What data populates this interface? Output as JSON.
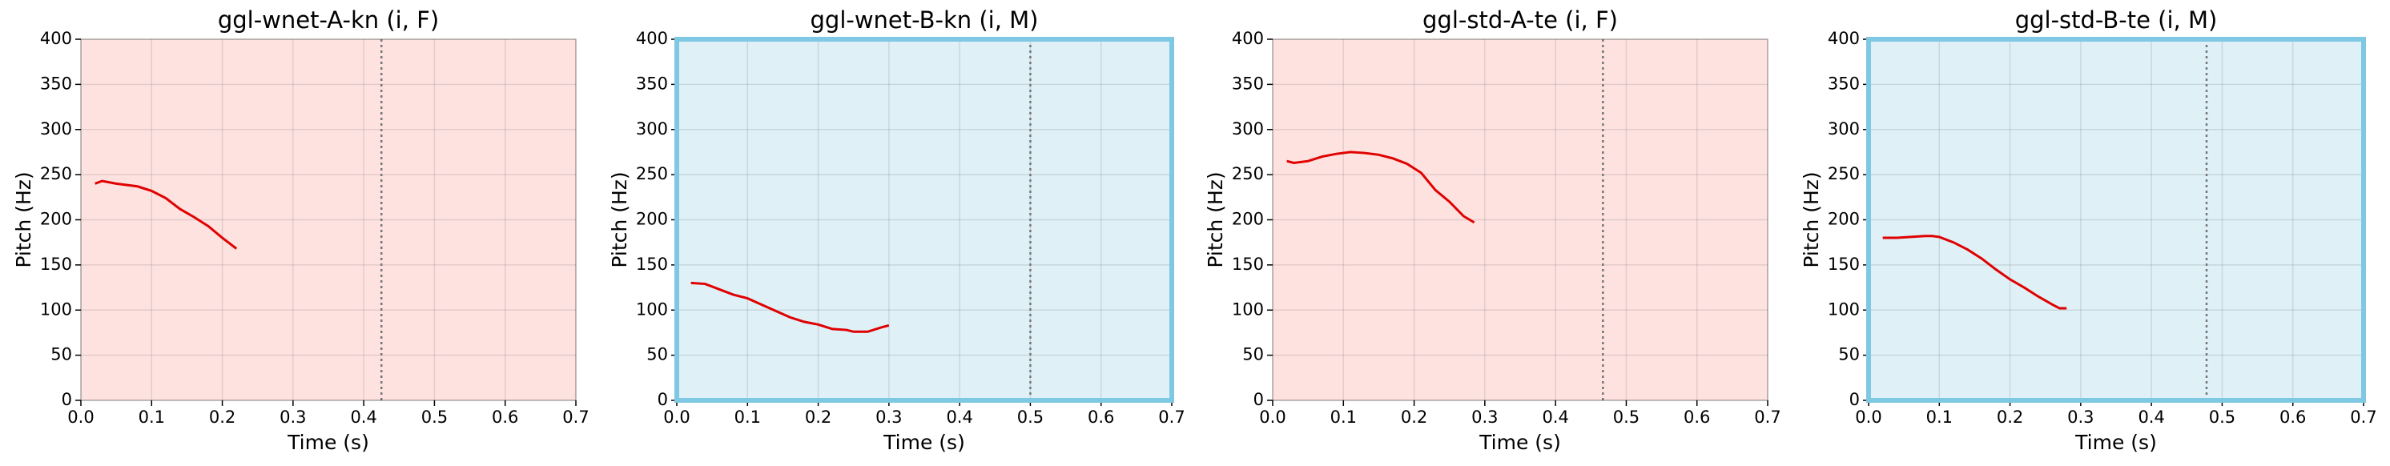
{
  "chart_data": [
    {
      "type": "line",
      "title": "ggl-wnet-A-kn (i, F)",
      "x_label": "Time (s)",
      "y_label": "Pitch (Hz)",
      "x": [
        0.02,
        0.03,
        0.05,
        0.08,
        0.1,
        0.12,
        0.14,
        0.16,
        0.18,
        0.2,
        0.22
      ],
      "values": [
        240,
        243,
        240,
        237,
        232,
        224,
        212,
        203,
        193,
        180,
        168
      ],
      "color": "#e00000",
      "vline": 0.425,
      "background": "#fde2e0",
      "xlim": [
        0,
        0.7
      ],
      "xticks": [
        {
          "value": 0,
          "label": "0.0"
        },
        0.1,
        0.2,
        0.3,
        0.4,
        0.5,
        0.6,
        0.7
      ],
      "ylim": [
        0,
        400
      ],
      "yticks": [
        0,
        50,
        100,
        150,
        200,
        250,
        300,
        350,
        400
      ],
      "grid": true
    },
    {
      "type": "line",
      "title": "ggl-wnet-B-kn (i, M)",
      "x_label": "Time (s)",
      "y_label": "Pitch (Hz)",
      "x": [
        0.02,
        0.04,
        0.06,
        0.08,
        0.1,
        0.12,
        0.14,
        0.16,
        0.18,
        0.2,
        0.22,
        0.24,
        0.25,
        0.27,
        0.29,
        0.3
      ],
      "values": [
        130,
        129,
        123,
        117,
        113,
        106,
        99,
        92,
        87,
        84,
        79,
        78,
        76,
        76,
        81,
        83
      ],
      "color": "#e00000",
      "vline": 0.5,
      "background": "#dff0f7",
      "border_color": "#7ec8e3",
      "xlim": [
        0,
        0.7
      ],
      "xticks": [
        {
          "value": 0,
          "label": "0.0"
        },
        0.1,
        0.2,
        0.3,
        0.4,
        0.5,
        0.6,
        0.7
      ],
      "ylim": [
        0,
        400
      ],
      "yticks": [
        0,
        50,
        100,
        150,
        200,
        250,
        300,
        350,
        400
      ],
      "grid": true
    },
    {
      "type": "line",
      "title": "ggl-std-A-te (i, F)",
      "x_label": "Time (s)",
      "y_label": "Pitch (Hz)",
      "x": [
        0.02,
        0.03,
        0.05,
        0.07,
        0.09,
        0.11,
        0.13,
        0.15,
        0.17,
        0.19,
        0.21,
        0.23,
        0.25,
        0.27,
        0.285
      ],
      "values": [
        265,
        263,
        265,
        270,
        273,
        275,
        274,
        272,
        268,
        262,
        252,
        233,
        220,
        204,
        197
      ],
      "color": "#e00000",
      "vline": 0.467,
      "background": "#fde2e0",
      "xlim": [
        0,
        0.7
      ],
      "xticks": [
        {
          "value": 0,
          "label": "0.0"
        },
        0.1,
        0.2,
        0.3,
        0.4,
        0.5,
        0.6,
        0.7
      ],
      "ylim": [
        0,
        400
      ],
      "yticks": [
        0,
        50,
        100,
        150,
        200,
        250,
        300,
        350,
        400
      ],
      "grid": true
    },
    {
      "type": "line",
      "title": "ggl-std-B-te (i, M)",
      "x_label": "Time (s)",
      "y_label": "Pitch (Hz)",
      "x": [
        0.02,
        0.04,
        0.06,
        0.08,
        0.09,
        0.1,
        0.12,
        0.14,
        0.16,
        0.18,
        0.2,
        0.22,
        0.24,
        0.26,
        0.27,
        0.28
      ],
      "values": [
        180,
        180,
        181,
        182,
        182,
        181,
        175,
        167,
        157,
        145,
        134,
        125,
        115,
        106,
        102,
        102
      ],
      "color": "#e00000",
      "vline": 0.478,
      "background": "#dff0f7",
      "border_color": "#7ec8e3",
      "xlim": [
        0,
        0.7
      ],
      "xticks": [
        {
          "value": 0,
          "label": "0.0"
        },
        0.1,
        0.2,
        0.3,
        0.4,
        0.5,
        0.6,
        0.7
      ],
      "ylim": [
        0,
        400
      ],
      "yticks": [
        0,
        50,
        100,
        150,
        200,
        250,
        300,
        350,
        400
      ],
      "grid": true
    }
  ]
}
